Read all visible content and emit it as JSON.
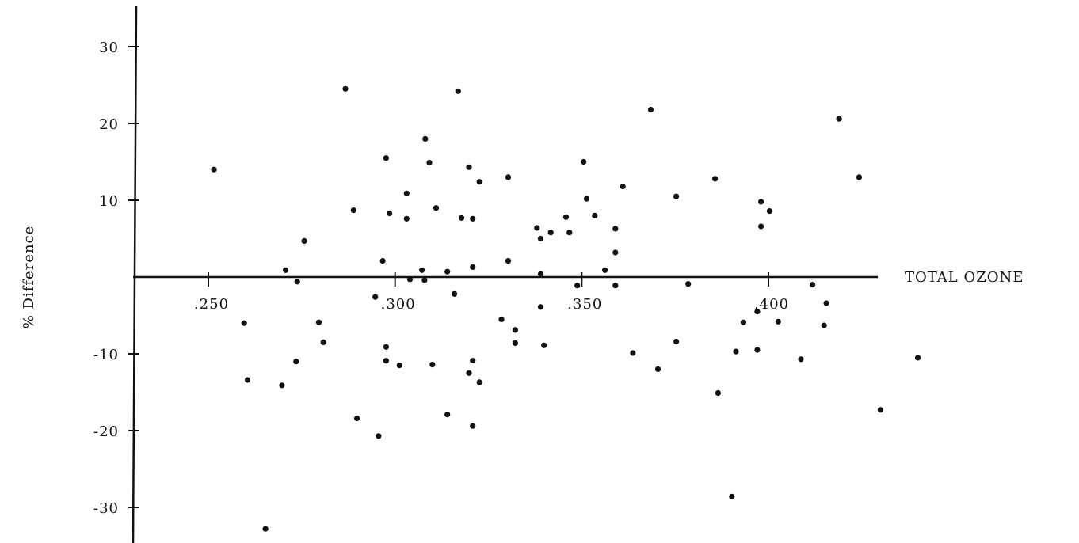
{
  "chart_data": {
    "type": "scatter",
    "title": "",
    "xlabel": "TOTAL OZONE",
    "ylabel": "% Difference",
    "xlim": [
      0.227,
      0.425
    ],
    "ylim": [
      -33,
      36
    ],
    "grid": false,
    "x_ticks": [
      {
        "value": 0.25,
        "label": ".250"
      },
      {
        "value": 0.3,
        "label": ".300"
      },
      {
        "value": 0.35,
        "label": ".350"
      },
      {
        "value": 0.4,
        "label": ".400"
      }
    ],
    "y_ticks": [
      {
        "value": 30,
        "label": "30"
      },
      {
        "value": 20,
        "label": "20"
      },
      {
        "value": 10,
        "label": "10"
      },
      {
        "value": -10,
        "label": "-10"
      },
      {
        "value": -20,
        "label": "-20"
      },
      {
        "value": -30,
        "label": "-30"
      }
    ],
    "points": [
      {
        "x": 0.2515,
        "y": 14.0
      },
      {
        "x": 0.2596,
        "y": -6.0
      },
      {
        "x": 0.2605,
        "y": -13.4
      },
      {
        "x": 0.2653,
        "y": -32.8
      },
      {
        "x": 0.2697,
        "y": -14.1
      },
      {
        "x": 0.2707,
        "y": 0.9
      },
      {
        "x": 0.2735,
        "y": -11.0
      },
      {
        "x": 0.2738,
        "y": -0.6
      },
      {
        "x": 0.2757,
        "y": 4.7
      },
      {
        "x": 0.2796,
        "y": -5.9
      },
      {
        "x": 0.2808,
        "y": -8.5
      },
      {
        "x": 0.2867,
        "y": 24.5
      },
      {
        "x": 0.2889,
        "y": 8.7
      },
      {
        "x": 0.2898,
        "y": -18.4
      },
      {
        "x": 0.2947,
        "y": -2.6
      },
      {
        "x": 0.2956,
        "y": -20.7
      },
      {
        "x": 0.2967,
        "y": 2.1
      },
      {
        "x": 0.2976,
        "y": -9.1
      },
      {
        "x": 0.2976,
        "y": -10.9
      },
      {
        "x": 0.2976,
        "y": 15.5
      },
      {
        "x": 0.2985,
        "y": 8.3
      },
      {
        "x": 0.3012,
        "y": -11.5
      },
      {
        "x": 0.3031,
        "y": 7.6
      },
      {
        "x": 0.3031,
        "y": 10.9
      },
      {
        "x": 0.304,
        "y": -0.3
      },
      {
        "x": 0.3072,
        "y": 0.9
      },
      {
        "x": 0.3079,
        "y": -0.4
      },
      {
        "x": 0.3081,
        "y": 18.0
      },
      {
        "x": 0.3092,
        "y": 14.9
      },
      {
        "x": 0.31,
        "y": -11.4
      },
      {
        "x": 0.311,
        "y": 9.0
      },
      {
        "x": 0.314,
        "y": 0.7
      },
      {
        "x": 0.314,
        "y": -17.9
      },
      {
        "x": 0.3159,
        "y": -2.2
      },
      {
        "x": 0.3169,
        "y": 24.2
      },
      {
        "x": 0.3178,
        "y": 7.7
      },
      {
        "x": 0.3198,
        "y": -12.5
      },
      {
        "x": 0.3198,
        "y": 14.3
      },
      {
        "x": 0.3208,
        "y": -10.9
      },
      {
        "x": 0.3208,
        "y": -19.4
      },
      {
        "x": 0.3208,
        "y": 1.3
      },
      {
        "x": 0.3208,
        "y": 7.6
      },
      {
        "x": 0.3226,
        "y": 12.4
      },
      {
        "x": 0.3226,
        "y": -13.7
      },
      {
        "x": 0.3285,
        "y": -5.5
      },
      {
        "x": 0.3303,
        "y": 13.0
      },
      {
        "x": 0.3303,
        "y": 2.1
      },
      {
        "x": 0.3322,
        "y": -6.9
      },
      {
        "x": 0.3322,
        "y": -8.6
      },
      {
        "x": 0.338,
        "y": 6.4
      },
      {
        "x": 0.339,
        "y": 5.0
      },
      {
        "x": 0.339,
        "y": -3.9
      },
      {
        "x": 0.339,
        "y": 0.4
      },
      {
        "x": 0.3399,
        "y": -8.9
      },
      {
        "x": 0.3417,
        "y": 5.8
      },
      {
        "x": 0.3458,
        "y": 7.8
      },
      {
        "x": 0.3467,
        "y": 5.8
      },
      {
        "x": 0.3488,
        "y": -1.1
      },
      {
        "x": 0.3505,
        "y": 15.0
      },
      {
        "x": 0.3513,
        "y": 10.2
      },
      {
        "x": 0.3535,
        "y": 8.0
      },
      {
        "x": 0.3562,
        "y": 0.9
      },
      {
        "x": 0.359,
        "y": -1.1
      },
      {
        "x": 0.359,
        "y": 3.2
      },
      {
        "x": 0.359,
        "y": 6.3
      },
      {
        "x": 0.361,
        "y": 11.8
      },
      {
        "x": 0.3637,
        "y": -9.9
      },
      {
        "x": 0.3685,
        "y": 21.8
      },
      {
        "x": 0.3704,
        "y": -12.0
      },
      {
        "x": 0.3753,
        "y": 10.5
      },
      {
        "x": 0.3753,
        "y": -8.4
      },
      {
        "x": 0.3785,
        "y": -0.9
      },
      {
        "x": 0.3857,
        "y": 12.8
      },
      {
        "x": 0.3865,
        "y": -15.1
      },
      {
        "x": 0.3902,
        "y": -28.6
      },
      {
        "x": 0.3913,
        "y": -9.7
      },
      {
        "x": 0.3933,
        "y": -5.9
      },
      {
        "x": 0.397,
        "y": -4.5
      },
      {
        "x": 0.397,
        "y": -9.5
      },
      {
        "x": 0.398,
        "y": 9.8
      },
      {
        "x": 0.398,
        "y": 6.6
      },
      {
        "x": 0.4003,
        "y": 8.6
      },
      {
        "x": 0.4026,
        "y": -5.8
      },
      {
        "x": 0.4087,
        "y": -10.7
      },
      {
        "x": 0.4118,
        "y": -1.0
      },
      {
        "x": 0.4149,
        "y": -6.3
      },
      {
        "x": 0.4155,
        "y": -3.4
      },
      {
        "x": 0.4189,
        "y": 20.6
      },
      {
        "x": 0.4243,
        "y": 13.0
      },
      {
        "x": 0.43,
        "y": -17.3
      },
      {
        "x": 0.44,
        "y": -10.5
      }
    ]
  }
}
